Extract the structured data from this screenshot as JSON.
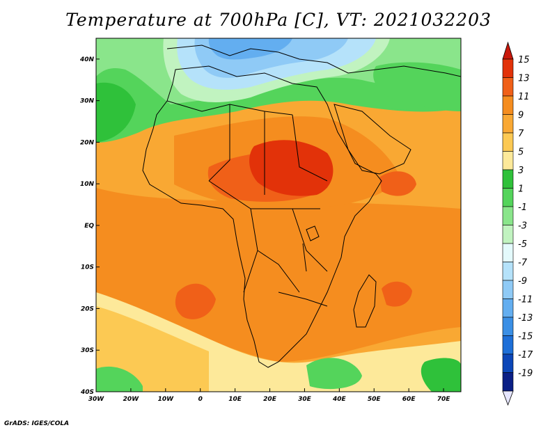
{
  "title": "Temperature at 700hPa [C], VT: 2021032203",
  "credit": "GrADS: IGES/COLA",
  "map": {
    "lon_range": [
      -30,
      75
    ],
    "lat_range": [
      -40,
      45
    ],
    "lon_ticks": [
      {
        "value": -30,
        "label": "30W"
      },
      {
        "value": -20,
        "label": "20W"
      },
      {
        "value": -10,
        "label": "10W"
      },
      {
        "value": 0,
        "label": "0"
      },
      {
        "value": 10,
        "label": "10E"
      },
      {
        "value": 20,
        "label": "20E"
      },
      {
        "value": 30,
        "label": "30E"
      },
      {
        "value": 40,
        "label": "40E"
      },
      {
        "value": 50,
        "label": "50E"
      },
      {
        "value": 60,
        "label": "60E"
      },
      {
        "value": 70,
        "label": "70E"
      }
    ],
    "lat_ticks": [
      {
        "value": 40,
        "label": "40N"
      },
      {
        "value": 30,
        "label": "30N"
      },
      {
        "value": 20,
        "label": "20N"
      },
      {
        "value": 10,
        "label": "10N"
      },
      {
        "value": 0,
        "label": "EQ"
      },
      {
        "value": -10,
        "label": "10S"
      },
      {
        "value": -20,
        "label": "20S"
      },
      {
        "value": -30,
        "label": "30S"
      },
      {
        "value": -40,
        "label": "40S"
      }
    ]
  },
  "colorbar": {
    "labels": [
      "15",
      "13",
      "11",
      "9",
      "7",
      "5",
      "3",
      "1",
      "-1",
      "-3",
      "-5",
      "-7",
      "-9",
      "-11",
      "-13",
      "-15",
      "-17",
      "-19"
    ],
    "colors": [
      "#e23209",
      "#f06018",
      "#f58d1f",
      "#f9a833",
      "#fcc953",
      "#fde99a",
      "#2fc13a",
      "#54d45b",
      "#8ae58b",
      "#c1f3c0",
      "#e4fafc",
      "#b5e2fa",
      "#8fcaf6",
      "#63aef0",
      "#3a8fe5",
      "#1d6fd8",
      "#0b46b8",
      "#0a1f86"
    ],
    "max_arrow_color": "#c9180b",
    "min_arrow_color": "#e6e6ff"
  },
  "field_regions": [
    {
      "name": "background-field",
      "color": "#f9a833"
    },
    {
      "name": "band-south-orange",
      "color": "#f58d1f"
    },
    {
      "name": "band-north-yellow",
      "color": "#fde99a"
    },
    {
      "name": "sahara-dark-orange",
      "color": "#f58d1f"
    },
    {
      "name": "sahel-hot-core",
      "color": "#f06018"
    },
    {
      "name": "sudan-hot-core",
      "color": "#e23209"
    },
    {
      "name": "southwest-ocean-warm",
      "color": "#f06018"
    },
    {
      "name": "madagascar-east-warm",
      "color": "#f06018"
    },
    {
      "name": "somalia-warm",
      "color": "#f06018"
    },
    {
      "name": "southwest-pale-band",
      "color": "#fcc953"
    },
    {
      "name": "south-ocean-pale",
      "color": "#fde99a"
    },
    {
      "name": "south-green-1",
      "color": "#54d45b"
    },
    {
      "name": "south-green-2",
      "color": "#54d45b"
    },
    {
      "name": "south-green-3",
      "color": "#2fc13a"
    },
    {
      "name": "north-green-zone",
      "color": "#54d45b"
    },
    {
      "name": "north-light-green",
      "color": "#8ae58b"
    },
    {
      "name": "atlantic-green",
      "color": "#2fc13a"
    },
    {
      "name": "mediterranean-cyan",
      "color": "#c1f3c0"
    },
    {
      "name": "mediterranean-light-blue",
      "color": "#b5e2fa"
    },
    {
      "name": "mediterranean-blue",
      "color": "#8fcaf6"
    },
    {
      "name": "mediterranean-deep-blue",
      "color": "#63aef0"
    },
    {
      "name": "mideast-green",
      "color": "#54d45b"
    }
  ]
}
